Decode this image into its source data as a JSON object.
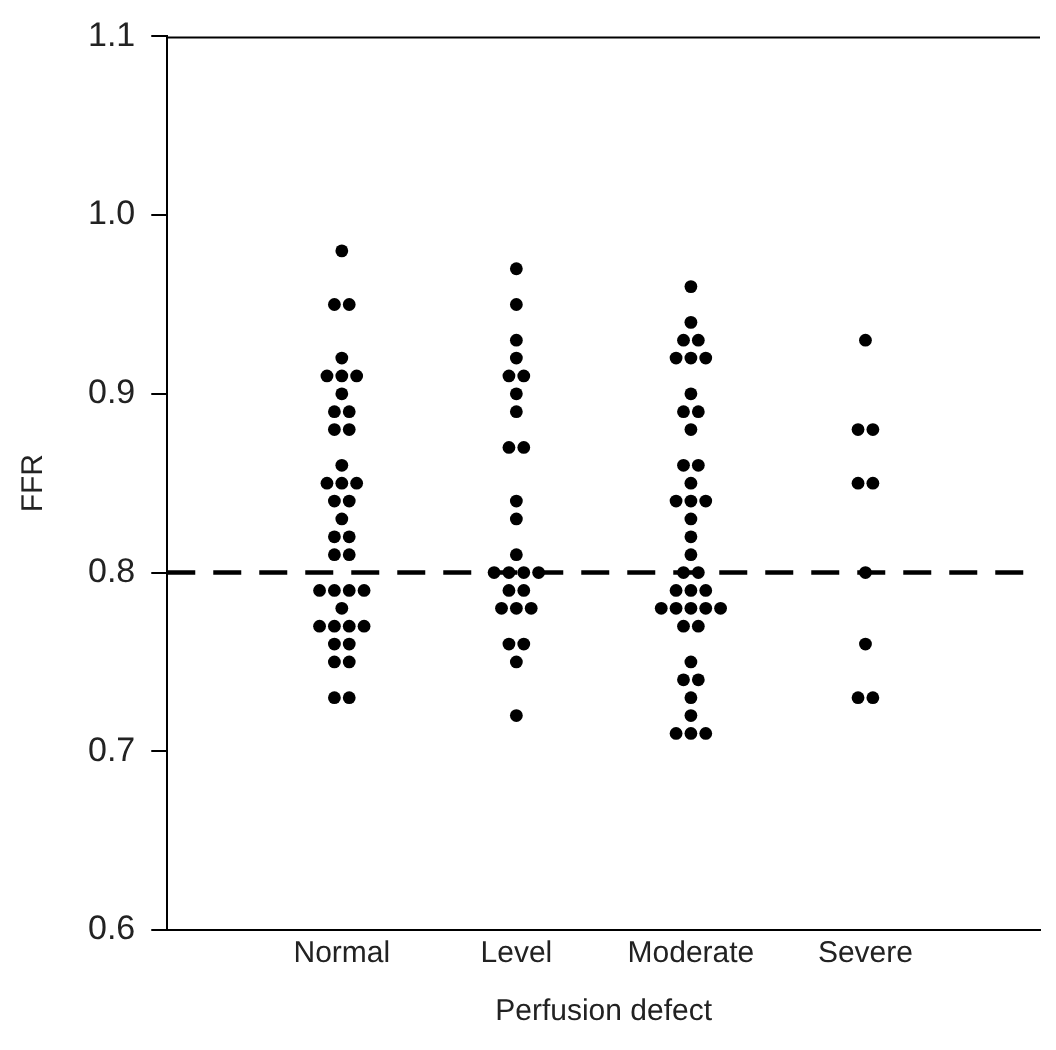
{
  "chart_data": {
    "type": "scatter",
    "xlabel": "Perfusion defect",
    "ylabel": "FFR",
    "categories": [
      "Normal",
      "Level",
      "Moderate",
      "Severe"
    ],
    "ylim": [
      0.6,
      1.1
    ],
    "yticks": [
      {
        "value": 0.6,
        "label": "0.6"
      },
      {
        "value": 0.7,
        "label": "0.7"
      },
      {
        "value": 0.8,
        "label": "0.8"
      },
      {
        "value": 0.9,
        "label": "0.9"
      },
      {
        "value": 1.0,
        "label": "1.0"
      },
      {
        "value": 1.1,
        "label": "1.1"
      }
    ],
    "grid": false,
    "legend": false,
    "marker": "circle",
    "ref_lines": [
      {
        "axis": "y",
        "value": 0.8,
        "color": "#000000",
        "line_style": "dashed"
      }
    ],
    "series": [
      {
        "color": "#000000",
        "x": [
          "Normal",
          "Normal",
          "Normal",
          "Normal",
          "Normal",
          "Normal",
          "Normal",
          "Normal",
          "Normal",
          "Normal",
          "Normal",
          "Normal",
          "Normal",
          "Normal",
          "Normal",
          "Normal",
          "Normal",
          "Normal",
          "Normal",
          "Normal",
          "Normal",
          "Normal",
          "Normal",
          "Normal",
          "Normal",
          "Normal",
          "Normal",
          "Normal",
          "Normal",
          "Normal",
          "Normal",
          "Normal",
          "Normal",
          "Normal",
          "Normal",
          "Normal",
          "Normal",
          "Normal",
          "Level",
          "Level",
          "Level",
          "Level",
          "Level",
          "Level",
          "Level",
          "Level",
          "Level",
          "Level",
          "Level",
          "Level",
          "Level",
          "Level",
          "Level",
          "Level",
          "Level",
          "Level",
          "Level",
          "Level",
          "Level",
          "Level",
          "Level",
          "Level",
          "Level",
          "Level",
          "Moderate",
          "Moderate",
          "Moderate",
          "Moderate",
          "Moderate",
          "Moderate",
          "Moderate",
          "Moderate",
          "Moderate",
          "Moderate",
          "Moderate",
          "Moderate",
          "Moderate",
          "Moderate",
          "Moderate",
          "Moderate",
          "Moderate",
          "Moderate",
          "Moderate",
          "Moderate",
          "Moderate",
          "Moderate",
          "Moderate",
          "Moderate",
          "Moderate",
          "Moderate",
          "Moderate",
          "Moderate",
          "Moderate",
          "Moderate",
          "Moderate",
          "Moderate",
          "Moderate",
          "Moderate",
          "Moderate",
          "Moderate",
          "Moderate",
          "Moderate",
          "Moderate",
          "Moderate",
          "Severe",
          "Severe",
          "Severe",
          "Severe",
          "Severe",
          "Severe",
          "Severe",
          "Severe",
          "Severe"
        ],
        "values": [
          0.98,
          0.95,
          0.95,
          0.92,
          0.91,
          0.91,
          0.91,
          0.9,
          0.89,
          0.89,
          0.88,
          0.88,
          0.86,
          0.85,
          0.85,
          0.85,
          0.84,
          0.84,
          0.83,
          0.82,
          0.82,
          0.81,
          0.81,
          0.79,
          0.79,
          0.79,
          0.79,
          0.78,
          0.77,
          0.77,
          0.77,
          0.77,
          0.76,
          0.76,
          0.75,
          0.75,
          0.73,
          0.73,
          0.97,
          0.95,
          0.93,
          0.92,
          0.91,
          0.91,
          0.9,
          0.89,
          0.87,
          0.87,
          0.84,
          0.83,
          0.81,
          0.8,
          0.8,
          0.8,
          0.8,
          0.79,
          0.79,
          0.78,
          0.78,
          0.78,
          0.76,
          0.76,
          0.75,
          0.72,
          0.96,
          0.94,
          0.93,
          0.93,
          0.92,
          0.92,
          0.92,
          0.9,
          0.89,
          0.89,
          0.88,
          0.86,
          0.86,
          0.85,
          0.84,
          0.84,
          0.84,
          0.83,
          0.82,
          0.81,
          0.8,
          0.8,
          0.79,
          0.79,
          0.79,
          0.78,
          0.78,
          0.78,
          0.78,
          0.78,
          0.77,
          0.77,
          0.75,
          0.74,
          0.74,
          0.73,
          0.72,
          0.71,
          0.71,
          0.71,
          0.93,
          0.88,
          0.88,
          0.85,
          0.85,
          0.8,
          0.76,
          0.73,
          0.73
        ]
      }
    ]
  }
}
